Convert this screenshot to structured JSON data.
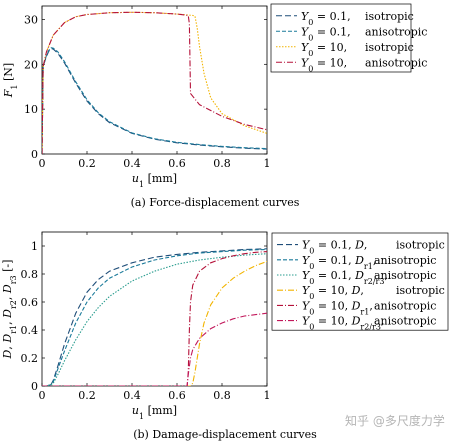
{
  "watermark": "知乎 @多尺度力学",
  "chart_data": [
    {
      "type": "line",
      "caption": "(a) Force-displacement curves",
      "xlabel": "u1 [mm]",
      "ylabel": "F1 [N]",
      "xlim": [
        0,
        1
      ],
      "ylim": [
        0,
        33
      ],
      "xticks": [
        0,
        0.2,
        0.4,
        0.6,
        0.8,
        1
      ],
      "xtick_labels": [
        "0",
        "0.2",
        "0.4",
        "0.6",
        "0.8",
        "1"
      ],
      "yticks": [
        0,
        10,
        20,
        30
      ],
      "ytick_labels": [
        "0",
        "10",
        "20",
        "30"
      ],
      "grid": false,
      "legend_position": "outside-right",
      "series": [
        {
          "name": "Y0 = 0.1, isotropic",
          "name_parts": [
            "Y",
            "0",
            " = 0.1,",
            "isotropic"
          ],
          "color": "#1f4e79",
          "dash": "6,3",
          "x": [
            0,
            0.005,
            0.01,
            0.02,
            0.03,
            0.04,
            0.05,
            0.07,
            0.1,
            0.15,
            0.2,
            0.25,
            0.3,
            0.4,
            0.5,
            0.6,
            0.7,
            0.8,
            0.9,
            1.0
          ],
          "y": [
            0,
            19.5,
            20.3,
            21.8,
            22.9,
            23.5,
            23.4,
            22.5,
            20.3,
            15.8,
            11.8,
            9.0,
            7.0,
            4.6,
            3.3,
            2.5,
            2.0,
            1.6,
            1.3,
            1.1
          ]
        },
        {
          "name": "Y0 = 0.1, anisotropic",
          "name_parts": [
            "Y",
            "0",
            " = 0.1,",
            "anisotropic"
          ],
          "color": "#1a7a9a",
          "dash": "4,2",
          "x": [
            0,
            0.005,
            0.01,
            0.02,
            0.03,
            0.04,
            0.05,
            0.07,
            0.1,
            0.15,
            0.2,
            0.25,
            0.3,
            0.4,
            0.5,
            0.6,
            0.7,
            0.8,
            0.9,
            1.0
          ],
          "y": [
            0,
            19.5,
            20.4,
            22.0,
            23.1,
            23.7,
            23.6,
            22.8,
            20.6,
            16.1,
            12.1,
            9.2,
            7.2,
            4.7,
            3.4,
            2.6,
            2.1,
            1.7,
            1.4,
            1.2
          ]
        },
        {
          "name": "Y0 = 10, isotropic",
          "name_parts": [
            "Y",
            "0",
            " = 10,",
            "isotropic"
          ],
          "color": "#f2b400",
          "dash": "1.5,1.5",
          "x": [
            0,
            0.005,
            0.02,
            0.05,
            0.1,
            0.15,
            0.2,
            0.3,
            0.4,
            0.5,
            0.6,
            0.67,
            0.68,
            0.69,
            0.7,
            0.72,
            0.75,
            0.8,
            0.9,
            1.0
          ],
          "y": [
            0,
            19.5,
            22.8,
            26.5,
            29.3,
            30.6,
            31.1,
            31.5,
            31.6,
            31.5,
            31.2,
            30.9,
            30.7,
            28.0,
            24.0,
            18.0,
            12.5,
            9.0,
            6.3,
            4.6
          ]
        },
        {
          "name": "Y0 = 10, anisotropic",
          "name_parts": [
            "Y",
            "0",
            " = 10,",
            "anisotropic"
          ],
          "color": "#b5123a",
          "dash": "6,2,1,2",
          "x": [
            0,
            0.005,
            0.02,
            0.05,
            0.1,
            0.15,
            0.2,
            0.3,
            0.4,
            0.5,
            0.6,
            0.65,
            0.655,
            0.66,
            0.7,
            0.75,
            0.8,
            0.9,
            1.0
          ],
          "y": [
            0,
            19.5,
            22.8,
            26.5,
            29.3,
            30.6,
            31.1,
            31.5,
            31.6,
            31.5,
            31.2,
            30.9,
            29.0,
            13.5,
            11.0,
            9.7,
            8.4,
            6.6,
            5.4
          ]
        }
      ]
    },
    {
      "type": "line",
      "caption": "(b) Damage-displacement curves",
      "xlabel": "u1 [mm]",
      "ylabel": "D, Dr1, Dr2, Dr3 [-]",
      "xlim": [
        0,
        1
      ],
      "ylim": [
        0,
        1.1
      ],
      "xticks": [
        0,
        0.2,
        0.4,
        0.6,
        0.8,
        1
      ],
      "xtick_labels": [
        "0",
        "0.2",
        "0.4",
        "0.6",
        "0.8",
        "1"
      ],
      "yticks": [
        0,
        0.2,
        0.4,
        0.6,
        0.8,
        1
      ],
      "ytick_labels": [
        "0",
        "0.2",
        "0.4",
        "0.6",
        "0.8",
        "1"
      ],
      "grid": false,
      "legend_position": "inside-right",
      "series": [
        {
          "name": "Y0 = 0.1, D, isotropic",
          "name_parts": [
            "Y",
            "0",
            " = 0.1, ",
            "D",
            "",
            "",
            "isotropic"
          ],
          "color": "#1f4e79",
          "dash": "6,3",
          "x": [
            0,
            0.02,
            0.04,
            0.05,
            0.07,
            0.1,
            0.15,
            0.2,
            0.25,
            0.3,
            0.4,
            0.5,
            0.6,
            0.7,
            0.8,
            0.9,
            1.0
          ],
          "y": [
            0,
            0,
            0.01,
            0.04,
            0.14,
            0.3,
            0.52,
            0.67,
            0.76,
            0.82,
            0.88,
            0.92,
            0.94,
            0.955,
            0.965,
            0.975,
            0.98
          ]
        },
        {
          "name": "Y0 = 0.1, Dr1, anisotropic",
          "name_parts": [
            "Y",
            "0",
            " = 0.1, ",
            "D",
            "r",
            "1",
            "anisotropic"
          ],
          "color": "#1a7a9a",
          "dash": "4,2",
          "x": [
            0,
            0.02,
            0.04,
            0.05,
            0.07,
            0.1,
            0.15,
            0.2,
            0.25,
            0.3,
            0.4,
            0.5,
            0.6,
            0.7,
            0.8,
            0.9,
            1.0
          ],
          "y": [
            0,
            0,
            0.01,
            0.03,
            0.12,
            0.25,
            0.45,
            0.6,
            0.7,
            0.77,
            0.85,
            0.9,
            0.93,
            0.95,
            0.96,
            0.97,
            0.975
          ]
        },
        {
          "name": "Y0 = 0.1, Dr2/r3, anisotropic",
          "name_parts": [
            "Y",
            "0",
            " = 0.1, ",
            "D",
            "r2/r3",
            "",
            "anisotropic"
          ],
          "color": "#2a9d8f",
          "dash": "1.5,1.5",
          "x": [
            0,
            0.02,
            0.04,
            0.05,
            0.07,
            0.1,
            0.15,
            0.2,
            0.25,
            0.3,
            0.4,
            0.5,
            0.6,
            0.7,
            0.8,
            0.9,
            1.0
          ],
          "y": [
            0,
            0,
            0.01,
            0.02,
            0.08,
            0.18,
            0.33,
            0.46,
            0.56,
            0.64,
            0.75,
            0.82,
            0.87,
            0.9,
            0.92,
            0.935,
            0.945
          ]
        },
        {
          "name": "Y0 = 10, D, isotropic",
          "name_parts": [
            "Y",
            "0",
            " = 10, ",
            "D",
            "",
            "",
            "isotropic"
          ],
          "color": "#f2b400",
          "dash": "6,2,1,2",
          "x": [
            0,
            0.66,
            0.67,
            0.68,
            0.7,
            0.72,
            0.75,
            0.8,
            0.85,
            0.9,
            0.95,
            1.0
          ],
          "y": [
            0,
            0,
            0.02,
            0.1,
            0.3,
            0.45,
            0.58,
            0.7,
            0.77,
            0.82,
            0.86,
            0.89
          ]
        },
        {
          "name": "Y0 = 10, Dr1, anisotropic",
          "name_parts": [
            "Y",
            "0",
            " = 10, ",
            "D",
            "r",
            "1",
            "anisotropic"
          ],
          "color": "#b5123a",
          "dash": "6,2,1,2",
          "x": [
            0,
            0.645,
            0.65,
            0.655,
            0.66,
            0.67,
            0.7,
            0.75,
            0.8,
            0.85,
            0.9,
            0.95,
            1.0
          ],
          "y": [
            0,
            0,
            0.1,
            0.4,
            0.6,
            0.72,
            0.82,
            0.88,
            0.91,
            0.93,
            0.945,
            0.955,
            0.96
          ]
        },
        {
          "name": "Y0 = 10, Dr2/r3, anisotropic",
          "name_parts": [
            "Y",
            "0",
            " = 10, ",
            "D",
            "r2/r3",
            "",
            "anisotropic"
          ],
          "color": "#c2185b",
          "dash": "6,2,1,2",
          "x": [
            0,
            0.645,
            0.65,
            0.66,
            0.67,
            0.7,
            0.75,
            0.8,
            0.85,
            0.9,
            0.95,
            1.0
          ],
          "y": [
            0,
            0,
            0.08,
            0.2,
            0.26,
            0.34,
            0.41,
            0.45,
            0.48,
            0.5,
            0.51,
            0.52
          ]
        }
      ]
    }
  ]
}
